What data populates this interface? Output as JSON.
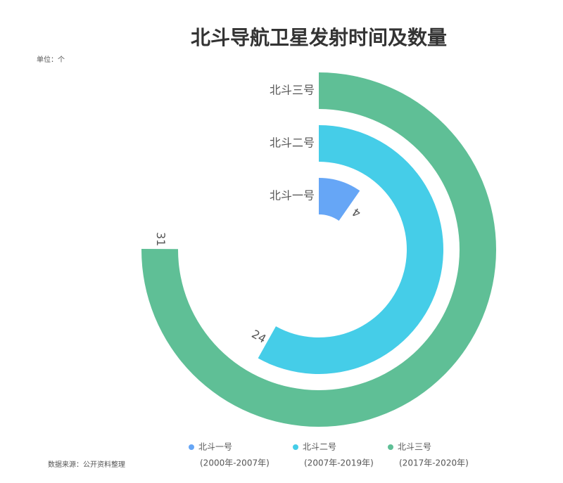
{
  "chart_data": {
    "type": "radial-bar",
    "title": "北斗导航卫星发射时间及数量",
    "unit_note": "单位：个",
    "source": "数据来源：公开资料整理",
    "categories": [
      "北斗一号",
      "北斗二号",
      "北斗三号"
    ],
    "periods": [
      "(2000年-2007年)",
      "(2007年-2019年)",
      "(2017年-2020年)"
    ],
    "values": [
      4,
      24,
      31
    ],
    "colors": [
      "#66a6f6",
      "#45cde8",
      "#5fbf96"
    ],
    "anglelim": [
      0,
      41.3
    ]
  }
}
